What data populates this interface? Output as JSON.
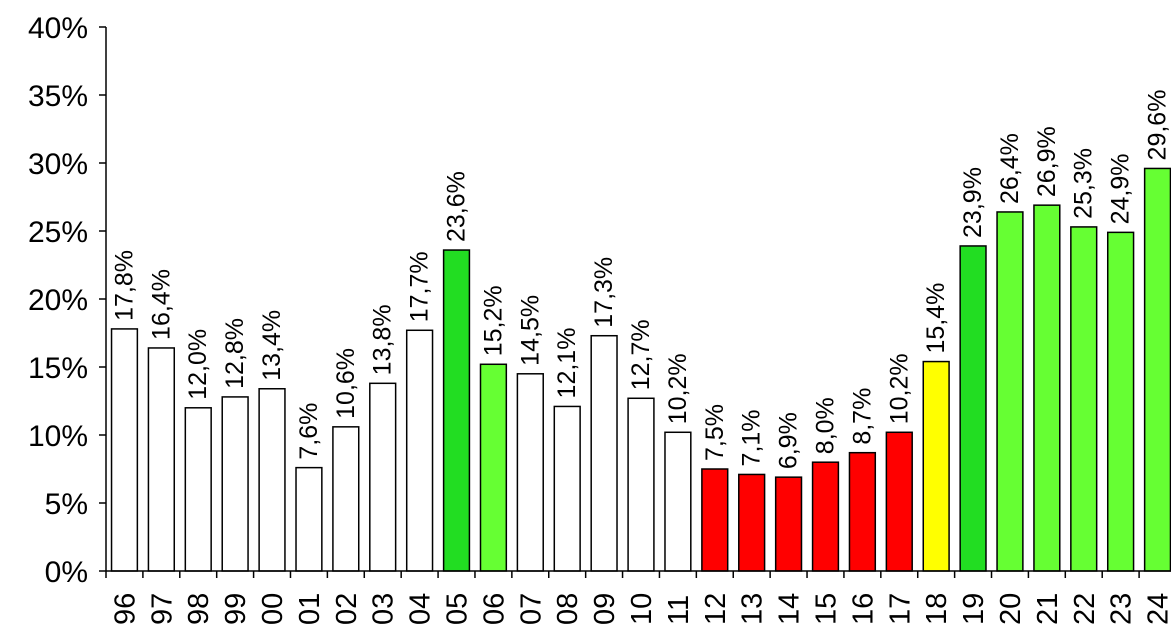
{
  "chart_data": {
    "type": "bar",
    "title": "",
    "xlabel": "",
    "ylabel": "",
    "ylim": [
      0,
      40
    ],
    "y_ticks": [
      "0%",
      "5%",
      "10%",
      "15%",
      "20%",
      "25%",
      "30%",
      "35%",
      "40%"
    ],
    "grid": false,
    "legend": "none",
    "categories": [
      "96",
      "97",
      "98",
      "99",
      "00",
      "01",
      "02",
      "03",
      "04",
      "05",
      "06",
      "07",
      "08",
      "09",
      "10",
      "11",
      "12",
      "13",
      "14",
      "15",
      "16",
      "17",
      "18",
      "19",
      "20",
      "21",
      "22",
      "23",
      "24"
    ],
    "values": [
      17.8,
      16.4,
      12.0,
      12.8,
      13.4,
      7.6,
      10.6,
      13.8,
      17.7,
      23.6,
      15.2,
      14.5,
      12.1,
      17.3,
      12.7,
      10.2,
      7.5,
      7.1,
      6.9,
      8.0,
      8.7,
      10.2,
      15.4,
      23.9,
      26.4,
      26.9,
      25.3,
      24.9,
      29.6
    ],
    "data_labels": [
      "17,8%",
      "16,4%",
      "12,0%",
      "12,8%",
      "13,4%",
      "7,6%",
      "10,6%",
      "13,8%",
      "17,7%",
      "23,6%",
      "15,2%",
      "14,5%",
      "12,1%",
      "17,3%",
      "12,7%",
      "10,2%",
      "7,5%",
      "7,1%",
      "6,9%",
      "8,0%",
      "8,7%",
      "10,2%",
      "15,4%",
      "23,9%",
      "26,4%",
      "26,9%",
      "25,3%",
      "24,9%",
      "29,6%"
    ],
    "bar_colors": [
      "#ffffff",
      "#ffffff",
      "#ffffff",
      "#ffffff",
      "#ffffff",
      "#ffffff",
      "#ffffff",
      "#ffffff",
      "#ffffff",
      "#22dd22",
      "#66ff33",
      "#ffffff",
      "#ffffff",
      "#ffffff",
      "#ffffff",
      "#ffffff",
      "#ff0000",
      "#ff0000",
      "#ff0000",
      "#ff0000",
      "#ff0000",
      "#ff0000",
      "#ffff00",
      "#22dd22",
      "#66ff33",
      "#66ff33",
      "#66ff33",
      "#66ff33",
      "#66ff33"
    ]
  }
}
